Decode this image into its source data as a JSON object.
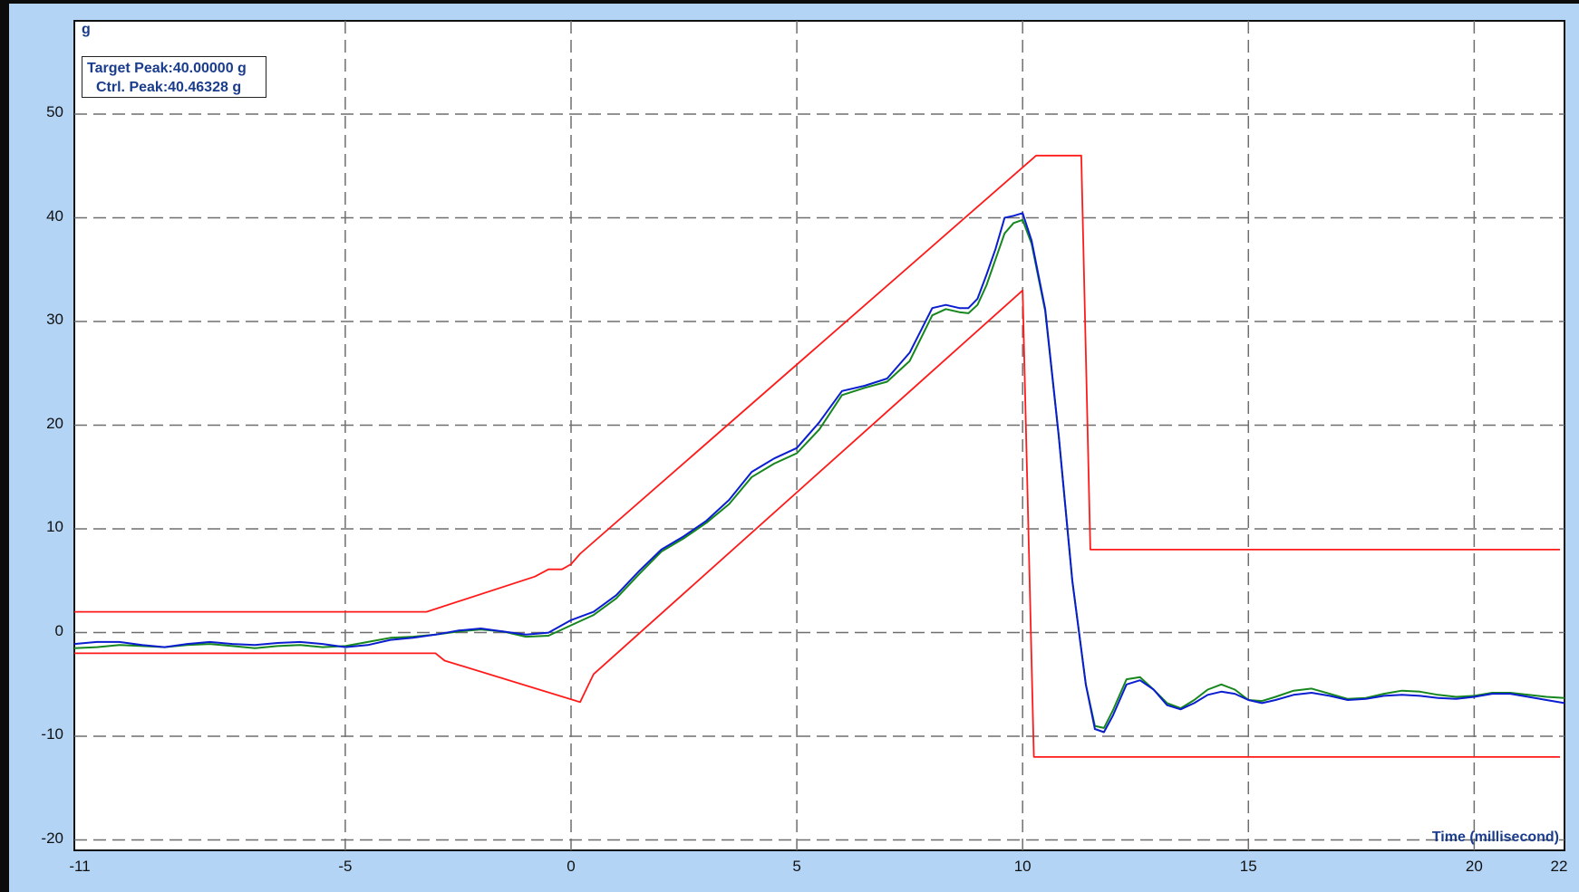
{
  "chart_data": {
    "type": "line",
    "xlabel": "Time (millisecond)",
    "ylabel": "g",
    "xlim": [
      -11,
      22
    ],
    "ylim": [
      -21,
      59
    ],
    "xticks": [
      -11,
      -5,
      0,
      5,
      10,
      15,
      20,
      22
    ],
    "yticks": [
      -20,
      -10,
      0,
      10,
      20,
      30,
      40,
      50
    ],
    "grid": true,
    "annotations": {
      "target_peak": "Target Peak:40.00000 g",
      "ctrl_peak": "Ctrl. Peak:40.46328 g"
    },
    "colors": {
      "upper": "#ff1a1a",
      "lower": "#ff1a1a",
      "control": "#0a1ed0",
      "reference": "#16861e"
    },
    "series": [
      {
        "role": "upper",
        "x": [
          -11,
          -3.2,
          -0.8,
          -0.5,
          -0.2,
          0,
          0.2,
          10.3,
          11.3,
          11.5,
          21.9
        ],
        "y": [
          2,
          2,
          5.4,
          6.1,
          6.1,
          6.6,
          7.6,
          46,
          46,
          8,
          8
        ]
      },
      {
        "role": "lower",
        "x": [
          -11,
          -3.0,
          -2.8,
          0.2,
          0.5,
          10,
          10.25,
          21.9
        ],
        "y": [
          -2,
          -2,
          -2.7,
          -6.7,
          -4,
          33,
          -12,
          -12
        ]
      },
      {
        "role": "reference",
        "x": [
          -11,
          -10.5,
          -10,
          -9.5,
          -9,
          -8.5,
          -8,
          -7.5,
          -7,
          -6.5,
          -6,
          -5.5,
          -5,
          -4.5,
          -4,
          -3.5,
          -3,
          -2.5,
          -2,
          -1.5,
          -1,
          -0.5,
          0,
          0.5,
          1,
          1.5,
          2,
          2.5,
          3,
          3.5,
          4,
          4.5,
          5,
          5.5,
          6,
          6.5,
          7,
          7.5,
          8,
          8.3,
          8.6,
          8.8,
          9,
          9.2,
          9.4,
          9.6,
          9.8,
          10,
          10.2,
          10.5,
          10.8,
          11.1,
          11.4,
          11.6,
          11.8,
          12,
          12.3,
          12.6,
          12.9,
          13.2,
          13.5,
          13.8,
          14.1,
          14.4,
          14.7,
          15,
          15.3,
          15.6,
          16,
          16.4,
          16.8,
          17.2,
          17.6,
          18,
          18.4,
          18.8,
          19.2,
          19.6,
          20,
          20.4,
          20.8,
          21.2,
          21.6,
          22
        ],
        "y": [
          -1.5,
          -1.4,
          -1.2,
          -1.3,
          -1.4,
          -1.2,
          -1.1,
          -1.3,
          -1.5,
          -1.3,
          -1.2,
          -1.4,
          -1.3,
          -0.9,
          -0.5,
          -0.4,
          -0.2,
          0.1,
          0.3,
          0.1,
          -0.4,
          -0.3,
          0.7,
          1.7,
          3.3,
          5.6,
          7.8,
          9.1,
          10.6,
          12.4,
          15.0,
          16.3,
          17.3,
          19.6,
          22.9,
          23.6,
          24.2,
          26.2,
          30.6,
          31.2,
          30.9,
          30.8,
          31.6,
          33.5,
          36,
          38.5,
          39.5,
          39.8,
          37.5,
          31,
          19,
          5,
          -5,
          -9,
          -9.2,
          -7.5,
          -4.5,
          -4.3,
          -5.5,
          -6.8,
          -7.3,
          -6.5,
          -5.5,
          -5,
          -5.5,
          -6.5,
          -6.6,
          -6.2,
          -5.6,
          -5.4,
          -5.9,
          -6.4,
          -6.3,
          -5.9,
          -5.6,
          -5.7,
          -6.0,
          -6.2,
          -6.1,
          -5.8,
          -5.8,
          -6.0,
          -6.2,
          -6.3
        ]
      },
      {
        "role": "control",
        "x": [
          -11,
          -10.5,
          -10,
          -9.5,
          -9,
          -8.5,
          -8,
          -7.5,
          -7,
          -6.5,
          -6,
          -5.5,
          -5,
          -4.5,
          -4,
          -3.5,
          -3,
          -2.5,
          -2,
          -1.5,
          -1,
          -0.5,
          0,
          0.5,
          1,
          1.5,
          2,
          2.5,
          3,
          3.5,
          4,
          4.5,
          5,
          5.5,
          6,
          6.5,
          7,
          7.5,
          8,
          8.3,
          8.6,
          8.8,
          9,
          9.2,
          9.4,
          9.6,
          9.8,
          10,
          10.2,
          10.5,
          10.8,
          11.1,
          11.4,
          11.6,
          11.8,
          12,
          12.3,
          12.6,
          12.9,
          13.2,
          13.5,
          13.8,
          14.1,
          14.4,
          14.7,
          15,
          15.3,
          15.6,
          16,
          16.4,
          16.8,
          17.2,
          17.6,
          18,
          18.4,
          18.8,
          19.2,
          19.6,
          20,
          20.4,
          20.8,
          21.2,
          21.6,
          22
        ],
        "y": [
          -1.1,
          -0.9,
          -0.9,
          -1.2,
          -1.4,
          -1.1,
          -0.9,
          -1.1,
          -1.2,
          -1.0,
          -0.9,
          -1.1,
          -1.4,
          -1.2,
          -0.7,
          -0.5,
          -0.2,
          0.2,
          0.4,
          0.1,
          -0.2,
          0.0,
          1.2,
          2.0,
          3.6,
          5.9,
          8.0,
          9.3,
          10.8,
          12.8,
          15.5,
          16.8,
          17.8,
          20.3,
          23.3,
          23.8,
          24.5,
          27.0,
          31.3,
          31.6,
          31.3,
          31.3,
          32.2,
          34.5,
          37,
          40.0,
          40.2,
          40.46,
          37.8,
          31.2,
          19,
          5,
          -5,
          -9.3,
          -9.6,
          -8,
          -5,
          -4.6,
          -5.5,
          -7.0,
          -7.4,
          -6.8,
          -6.0,
          -5.7,
          -5.9,
          -6.5,
          -6.8,
          -6.5,
          -6.0,
          -5.8,
          -6.1,
          -6.5,
          -6.4,
          -6.1,
          -6.0,
          -6.1,
          -6.3,
          -6.4,
          -6.2,
          -5.9,
          -5.9,
          -6.2,
          -6.5,
          -6.8
        ]
      }
    ]
  }
}
